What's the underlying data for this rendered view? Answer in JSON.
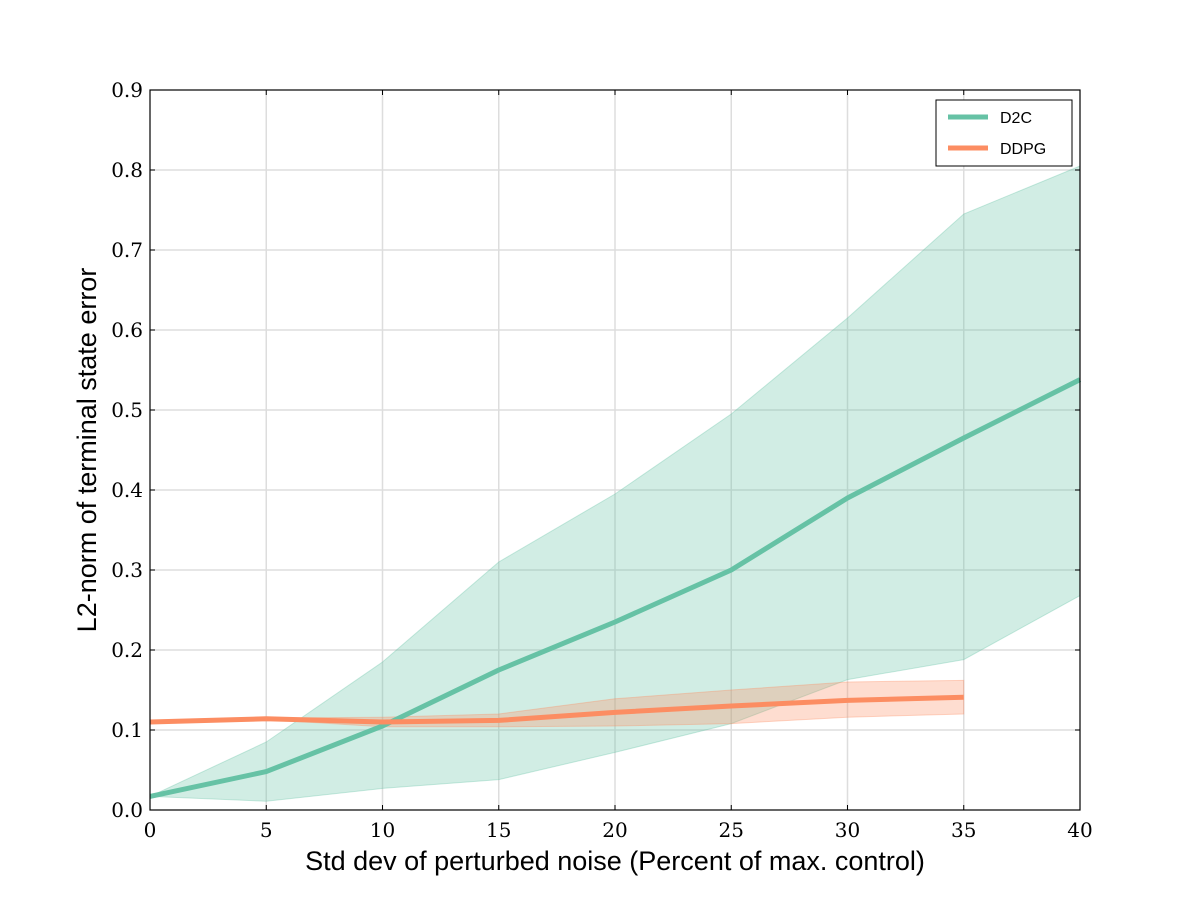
{
  "chart_data": {
    "type": "line",
    "title": "",
    "xlabel": "Std dev of perturbed noise (Percent of max. control)",
    "ylabel": "L2-norm of terminal state error",
    "xlim": [
      0,
      40
    ],
    "ylim": [
      0,
      0.9
    ],
    "xticks": [
      "0",
      "5",
      "10",
      "15",
      "20",
      "25",
      "30",
      "35",
      "40"
    ],
    "yticks": [
      "0.0",
      "0.1",
      "0.2",
      "0.3",
      "0.4",
      "0.5",
      "0.6",
      "0.7",
      "0.8",
      "0.9"
    ],
    "grid": true,
    "legend_position": "top-right",
    "series": [
      {
        "name": "D2C",
        "color": "#66c2a5",
        "x": [
          0,
          5,
          10,
          15,
          20,
          25,
          30,
          35,
          40
        ],
        "y": [
          0.017,
          0.048,
          0.105,
          0.175,
          0.235,
          0.3,
          0.39,
          0.465,
          0.538
        ],
        "band_upper": [
          0.017,
          0.085,
          0.185,
          0.31,
          0.395,
          0.495,
          0.615,
          0.745,
          0.805
        ],
        "band_lower": [
          0.017,
          0.011,
          0.027,
          0.038,
          0.072,
          0.108,
          0.163,
          0.188,
          0.268
        ]
      },
      {
        "name": "DDPG",
        "color": "#fc8d62",
        "x": [
          0,
          5,
          10,
          15,
          20,
          25,
          30,
          35
        ],
        "y": [
          0.11,
          0.114,
          0.11,
          0.112,
          0.122,
          0.13,
          0.137,
          0.141
        ],
        "band_upper": [
          0.11,
          0.115,
          0.116,
          0.12,
          0.139,
          0.15,
          0.16,
          0.162
        ],
        "band_lower": [
          0.11,
          0.113,
          0.104,
          0.104,
          0.105,
          0.108,
          0.116,
          0.12
        ]
      }
    ]
  }
}
